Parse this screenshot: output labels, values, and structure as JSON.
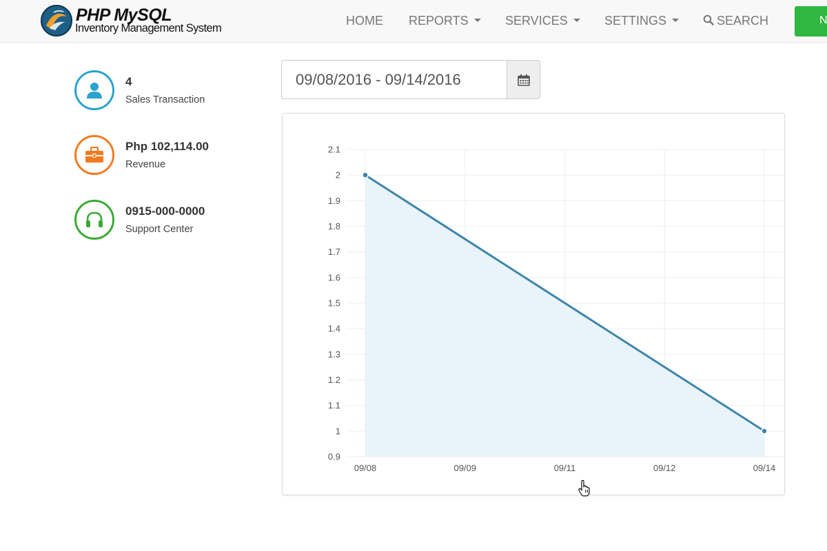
{
  "brand": {
    "title": "PHP MySQL",
    "subtitle": "Inventory Management System"
  },
  "nav": {
    "home": "HOME",
    "reports": "REPORTS",
    "services": "SERVICES",
    "settings": "SETTINGS",
    "search": "SEARCH",
    "green_button": "N"
  },
  "stats": [
    {
      "value": "4",
      "label": "Sales Transaction",
      "icon": "user-icon",
      "color": "#2aa3cf"
    },
    {
      "value": "Php 102,114.00",
      "label": "Revenue",
      "icon": "briefcase-icon",
      "color": "#f47a20"
    },
    {
      "value": "0915-000-0000",
      "label": "Support Center",
      "icon": "headphones-icon",
      "color": "#3aaa35"
    }
  ],
  "date_range": {
    "value": "09/08/2016 - 09/14/2016",
    "icon": "calendar-icon"
  },
  "chart_data": {
    "type": "area",
    "x": [
      "09/08",
      "09/09",
      "09/11",
      "09/12",
      "09/14"
    ],
    "points": [
      {
        "x": "09/08",
        "y": 2
      },
      {
        "x": "09/14",
        "y": 1
      }
    ],
    "yticks": [
      "2.1",
      "2",
      "1.9",
      "1.8",
      "1.7",
      "1.6",
      "1.5",
      "1.4",
      "1.3",
      "1.2",
      "1.1",
      "1",
      "0.9"
    ],
    "ylim": [
      0.9,
      2.1
    ],
    "grid": true,
    "line_color": "#3d85a8",
    "fill_color": "#e6f2fa"
  }
}
